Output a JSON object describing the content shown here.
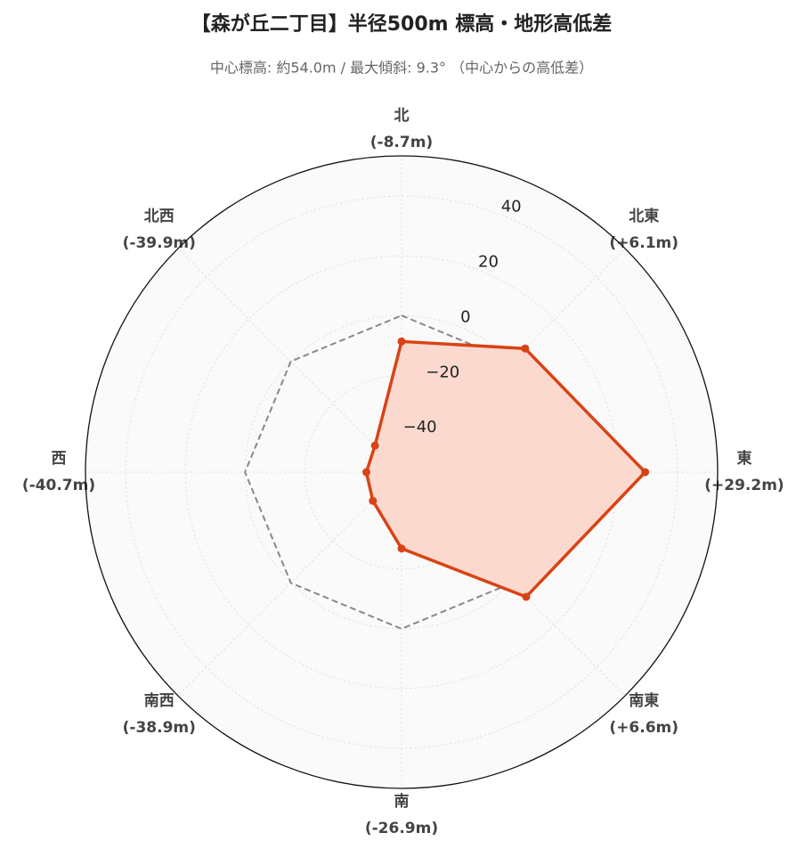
{
  "chart_data": {
    "type": "radar",
    "title": "【森が丘二丁目】半径500m 標高・地形高低差",
    "subtitle": "中心標高: 約54.0m / 最大傾斜: 9.3° （中心からの高低差）",
    "categories": [
      "北",
      "北東",
      "東",
      "南東",
      "南",
      "南西",
      "西",
      "北西"
    ],
    "series": [
      {
        "color": "#d84315",
        "fill": "#fbd9cf",
        "values": [
          -8.7,
          6.1,
          29.2,
          6.6,
          -26.9,
          -38.9,
          -40.7,
          -39.9
        ],
        "value_labels": [
          "(-8.7m)",
          "(+6.1m)",
          "(+29.2m)",
          "(+6.6m)",
          "(-26.9m)",
          "(-38.9m)",
          "(-40.7m)",
          "(-39.9m)"
        ]
      }
    ],
    "reference_line": 0,
    "ylim": [
      -52.5,
      53.5
    ],
    "yticks": [
      {
        "value": -40,
        "label": "−40"
      },
      {
        "value": -20,
        "label": "−20"
      },
      0,
      20,
      40
    ],
    "grid": true
  }
}
